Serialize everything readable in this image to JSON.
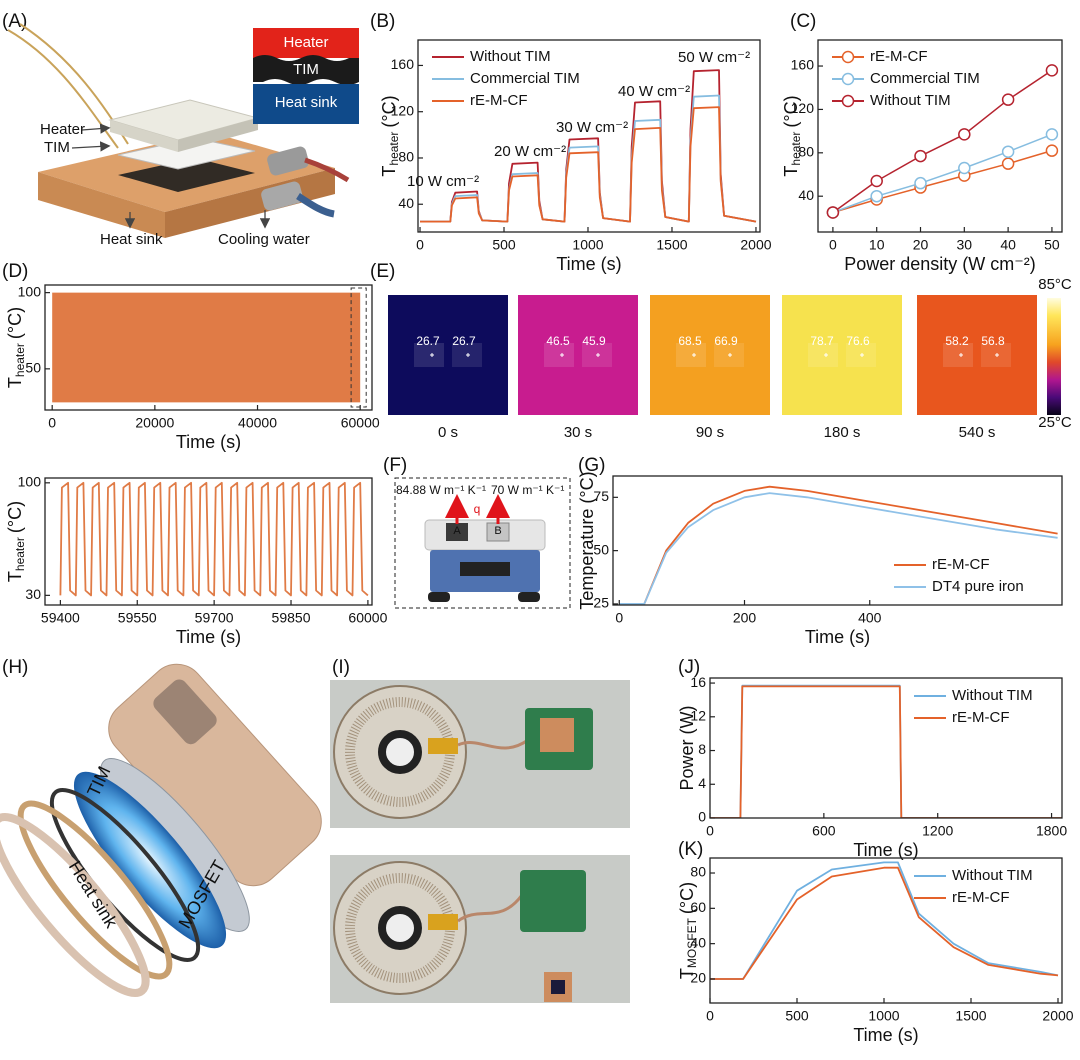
{
  "panel_labels": [
    "(A)",
    "(B)",
    "(C)",
    "(D)",
    "(E)",
    "(F)",
    "(G)",
    "(H)",
    "(I)",
    "(J)",
    "(K)"
  ],
  "schematic": {
    "legend_heater": "Heater",
    "legend_tim": "TIM",
    "legend_heat_sink": "Heat sink",
    "heater": "Heater",
    "tim": "TIM",
    "heat_sink": "Heat sink",
    "cooling_water": "Cooling water"
  },
  "ir_images": {
    "frames": [
      {
        "time": "0 s",
        "spot_a": 26.7,
        "spot_b": 26.7
      },
      {
        "time": "30 s",
        "spot_a": 46.5,
        "spot_b": 45.9
      },
      {
        "time": "90 s",
        "spot_a": 68.5,
        "spot_b": 66.9
      },
      {
        "time": "180 s",
        "spot_a": 78.7,
        "spot_b": 76.6
      },
      {
        "time": "540 s",
        "spot_a": 58.2,
        "spot_b": 56.8
      }
    ],
    "scale_max": "85°C",
    "scale_min": "25°C"
  },
  "panel_f": {
    "k_a": "84.88 W m⁻¹ K⁻¹",
    "k_b": "70 W m⁻¹ K⁻¹",
    "heat_flux": "q",
    "sample_a": "A",
    "sample_b": "B"
  },
  "panel_h": {
    "tim": "TIM",
    "heat_sink": "Heat sink",
    "mosfet": "MOSFET"
  },
  "chart_data": [
    {
      "type": "line",
      "x": [
        0,
        180,
        190,
        210,
        340,
        350,
        370,
        520,
        530,
        550,
        700,
        710,
        730,
        860,
        870,
        890,
        1060,
        1070,
        1090,
        1250,
        1260,
        1280,
        1430,
        1440,
        1460,
        1600,
        1610,
        1630,
        1780,
        1790,
        1810,
        2000
      ],
      "series": [
        {
          "name": "Without TIM",
          "color": "#b5232f",
          "values": [
            25,
            25,
            42,
            50,
            51,
            34,
            26,
            25,
            58,
            75,
            76,
            43,
            27,
            25,
            70,
            96,
            97,
            50,
            28,
            25,
            90,
            128,
            129,
            60,
            29,
            25,
            105,
            155,
            156,
            66,
            30,
            25
          ]
        },
        {
          "name": "Commercial TIM",
          "color": "#86bde0",
          "values": [
            25,
            25,
            40,
            47,
            48,
            33,
            26,
            25,
            53,
            66,
            67,
            40,
            27,
            25,
            66,
            89,
            90,
            48,
            28,
            25,
            80,
            112,
            113,
            55,
            29,
            25,
            95,
            133,
            134,
            62,
            30,
            25
          ]
        },
        {
          "name": "rE-M-CF",
          "color": "#e4622a",
          "values": [
            25,
            25,
            39,
            45,
            46,
            32,
            26,
            25,
            52,
            64,
            65,
            39,
            27,
            25,
            63,
            84,
            85,
            46,
            28,
            25,
            76,
            105,
            106,
            52,
            29,
            25,
            90,
            123,
            124,
            60,
            30,
            25
          ]
        }
      ],
      "annotations": [
        "10 W cm⁻²",
        "20 W cm⁻²",
        "30 W cm⁻²",
        "40 W cm⁻²",
        "50 W cm⁻²"
      ],
      "xlim": [
        -12,
        2024
      ],
      "xticks": [
        0,
        500,
        1000,
        1500,
        2000
      ],
      "ylim": [
        16,
        182
      ],
      "yticks": [
        40,
        80,
        120,
        160
      ],
      "x_label": "Time (s)",
      "y_label": {
        "symbol": "T",
        "subscript": "heater",
        "unit": "(°C)"
      },
      "legend": "upper left"
    },
    {
      "type": "line",
      "markers": true,
      "x": [
        0,
        10,
        20,
        30,
        40,
        50
      ],
      "series": [
        {
          "name": "rE-M-CF",
          "color": "#e4622a",
          "values": [
            25,
            37,
            48,
            59,
            70,
            82
          ]
        },
        {
          "name": "Commercial TIM",
          "color": "#86bde0",
          "values": [
            25,
            40,
            52,
            66,
            81,
            97
          ]
        },
        {
          "name": "Without TIM",
          "color": "#b5232f",
          "values": [
            25,
            54,
            77,
            97,
            129,
            156
          ]
        }
      ],
      "xlim": [
        -3.4,
        52.3
      ],
      "xticks": [
        0,
        10,
        20,
        30,
        40,
        50
      ],
      "ylim": [
        7,
        184
      ],
      "yticks": [
        40,
        80,
        120,
        160
      ],
      "x_label": "Power density (W cm⁻²)",
      "y_label": {
        "symbol": "T",
        "subscript": "heater",
        "unit": "(°C)"
      },
      "legend": "upper left"
    },
    {
      "type": "range",
      "x": [
        0,
        60000
      ],
      "low": [
        28,
        28
      ],
      "high": [
        100,
        100
      ],
      "color": "#e07b46",
      "highlight_x": [
        59400,
        60000
      ],
      "xlim": [
        -1400,
        62300
      ],
      "xticks": [
        0,
        20000,
        40000,
        60000
      ],
      "ylim": [
        23,
        105
      ],
      "yticks": [
        50,
        100
      ],
      "x_label": "Time (s)",
      "y_label": {
        "symbol": "T",
        "subscript": "heater",
        "unit": "(°C)"
      }
    },
    {
      "type": "line",
      "x": [
        59400,
        59403,
        59415,
        59419,
        59430,
        59433,
        59445,
        59449,
        59460,
        59463,
        59475,
        59479,
        59490,
        59493,
        59505,
        59509,
        59520,
        59523,
        59535,
        59539,
        59550,
        59553,
        59565,
        59569,
        59580,
        59583,
        59595,
        59599,
        59610,
        59613,
        59625,
        59629,
        59640,
        59643,
        59655,
        59659,
        59670,
        59673,
        59685,
        59689,
        59700,
        59703,
        59715,
        59719,
        59730,
        59733,
        59745,
        59749,
        59760,
        59763,
        59775,
        59779,
        59790,
        59793,
        59805,
        59809,
        59820,
        59823,
        59835,
        59839,
        59850,
        59853,
        59865,
        59869,
        59880,
        59883,
        59895,
        59899,
        59910,
        59913,
        59925,
        59929,
        59940,
        59943,
        59955,
        59959,
        59970,
        59973,
        59985,
        59989,
        60000
      ],
      "series": [
        {
          "color": "#e07b46",
          "values": [
            30,
            97,
            100,
            33,
            30,
            97,
            100,
            33,
            30,
            97,
            100,
            33,
            30,
            97,
            100,
            33,
            30,
            97,
            100,
            33,
            30,
            97,
            100,
            33,
            30,
            97,
            100,
            33,
            30,
            97,
            100,
            33,
            30,
            97,
            100,
            33,
            30,
            97,
            100,
            33,
            30,
            97,
            100,
            33,
            30,
            97,
            100,
            33,
            30,
            97,
            100,
            33,
            30,
            97,
            100,
            33,
            30,
            97,
            100,
            33,
            30,
            97,
            100,
            33,
            30,
            97,
            100,
            33,
            30,
            97,
            100,
            33,
            30,
            97,
            100,
            33,
            30,
            97,
            100,
            33,
            30
          ]
        }
      ],
      "xlim": [
        59370,
        60008
      ],
      "xticks": [
        59400,
        59550,
        59700,
        59850,
        60000
      ],
      "ylim": [
        24,
        103
      ],
      "yticks": [
        30,
        100
      ],
      "x_label": "Time (s)",
      "y_label": {
        "symbol": "T",
        "subscript": "heater",
        "unit": "(°C)"
      }
    },
    {
      "type": "line",
      "x": [
        0,
        40,
        75,
        110,
        150,
        200,
        240,
        300,
        400,
        500,
        600,
        700
      ],
      "series": [
        {
          "name": "rE-M-CF",
          "color": "#e4622a",
          "values": [
            25,
            25,
            50,
            63,
            72,
            78,
            80,
            78,
            73,
            68,
            63,
            58
          ]
        },
        {
          "name": "DT4 pure iron",
          "color": "#8fc1e8",
          "values": [
            25,
            25,
            49,
            61,
            69,
            75,
            77,
            75,
            70,
            65,
            60,
            56
          ]
        }
      ],
      "xlim": [
        -10,
        707
      ],
      "xticks": [
        0,
        200,
        400
      ],
      "ylim": [
        24.5,
        85
      ],
      "yticks": [
        25,
        50,
        75
      ],
      "x_label": "Time (s)",
      "y_label": "Temperature (°C)",
      "legend": "lower right"
    },
    {
      "type": "line",
      "x": [
        0,
        160,
        170,
        1000,
        1008,
        2000
      ],
      "series": [
        {
          "name": "Without TIM",
          "color": "#6fb0e0",
          "values": [
            0,
            0,
            15.7,
            15.7,
            0,
            0
          ]
        },
        {
          "name": "rE-M-CF",
          "color": "#e4622a",
          "values": [
            0,
            0,
            15.6,
            15.6,
            0,
            0
          ]
        }
      ],
      "xlim": [
        0,
        1855
      ],
      "xticks": [
        0,
        600,
        1200,
        1800
      ],
      "ylim": [
        0,
        16.6
      ],
      "yticks": [
        0,
        4,
        8,
        12,
        16
      ],
      "x_label": "Time (s)",
      "y_label": "Power (W)",
      "legend": "upper right"
    },
    {
      "type": "line",
      "x": [
        0,
        190,
        500,
        700,
        1000,
        1080,
        1200,
        1400,
        1600,
        1900,
        2000
      ],
      "series": [
        {
          "name": "Without TIM",
          "color": "#6fb0e0",
          "values": [
            20,
            20,
            70,
            82,
            86,
            86,
            57,
            40,
            29,
            24,
            22
          ]
        },
        {
          "name": "rE-M-CF",
          "color": "#e4622a",
          "values": [
            20,
            20,
            65,
            78,
            83,
            83,
            55,
            38,
            28,
            23,
            22
          ]
        }
      ],
      "xlim": [
        0,
        2023
      ],
      "xticks": [
        0,
        500,
        1000,
        1500,
        2000
      ],
      "ylim": [
        6.4,
        88.5
      ],
      "yticks": [
        20,
        40,
        60,
        80
      ],
      "x_label": "Time (s)",
      "y_label": {
        "symbol": "T",
        "subscript": "MOSFET",
        "unit": "(°C)"
      },
      "legend": "upper right"
    }
  ]
}
